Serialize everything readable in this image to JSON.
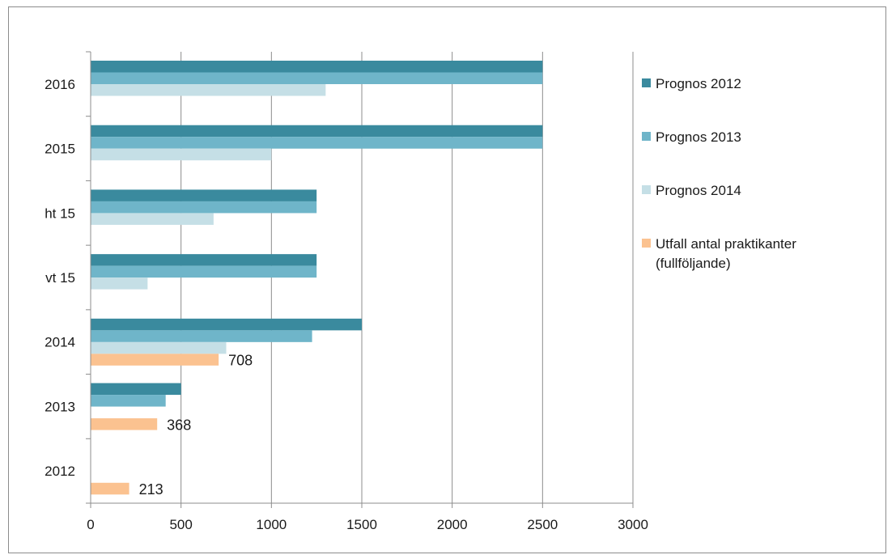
{
  "chart_data": {
    "type": "bar",
    "orientation": "horizontal",
    "categories": [
      "2016",
      "2015",
      "ht 15",
      "vt 15",
      "2014",
      "2013",
      "2012"
    ],
    "series": [
      {
        "name": "Prognos 2012",
        "color": "#3a8a9e",
        "values": [
          2500,
          2500,
          1250,
          1250,
          1500,
          500,
          null
        ]
      },
      {
        "name": "Prognos 2013",
        "color": "#6fb5c9",
        "values": [
          2500,
          2500,
          1250,
          1250,
          1225,
          415,
          null
        ]
      },
      {
        "name": "Prognos 2014",
        "color": "#c5dfe6",
        "values": [
          1300,
          1000,
          680,
          315,
          750,
          null,
          null
        ]
      },
      {
        "name": "Utfall antal praktikanter (fullföljande)",
        "color": "#fbc290",
        "values": [
          null,
          null,
          null,
          null,
          708,
          368,
          213
        ]
      }
    ],
    "data_labels": [
      {
        "category": "2014",
        "series": "Utfall antal praktikanter (fullföljande)",
        "text": "708"
      },
      {
        "category": "2013",
        "series": "Utfall antal praktikanter (fullföljande)",
        "text": "368"
      },
      {
        "category": "2012",
        "series": "Utfall antal praktikanter (fullföljande)",
        "text": "213"
      }
    ],
    "x_ticks": [
      "0",
      "500",
      "1000",
      "1500",
      "2000",
      "2500",
      "3000"
    ],
    "xlim": [
      0,
      3000
    ],
    "title": "",
    "xlabel": "",
    "ylabel": "",
    "grid": "vertical",
    "legend_position": "right"
  }
}
